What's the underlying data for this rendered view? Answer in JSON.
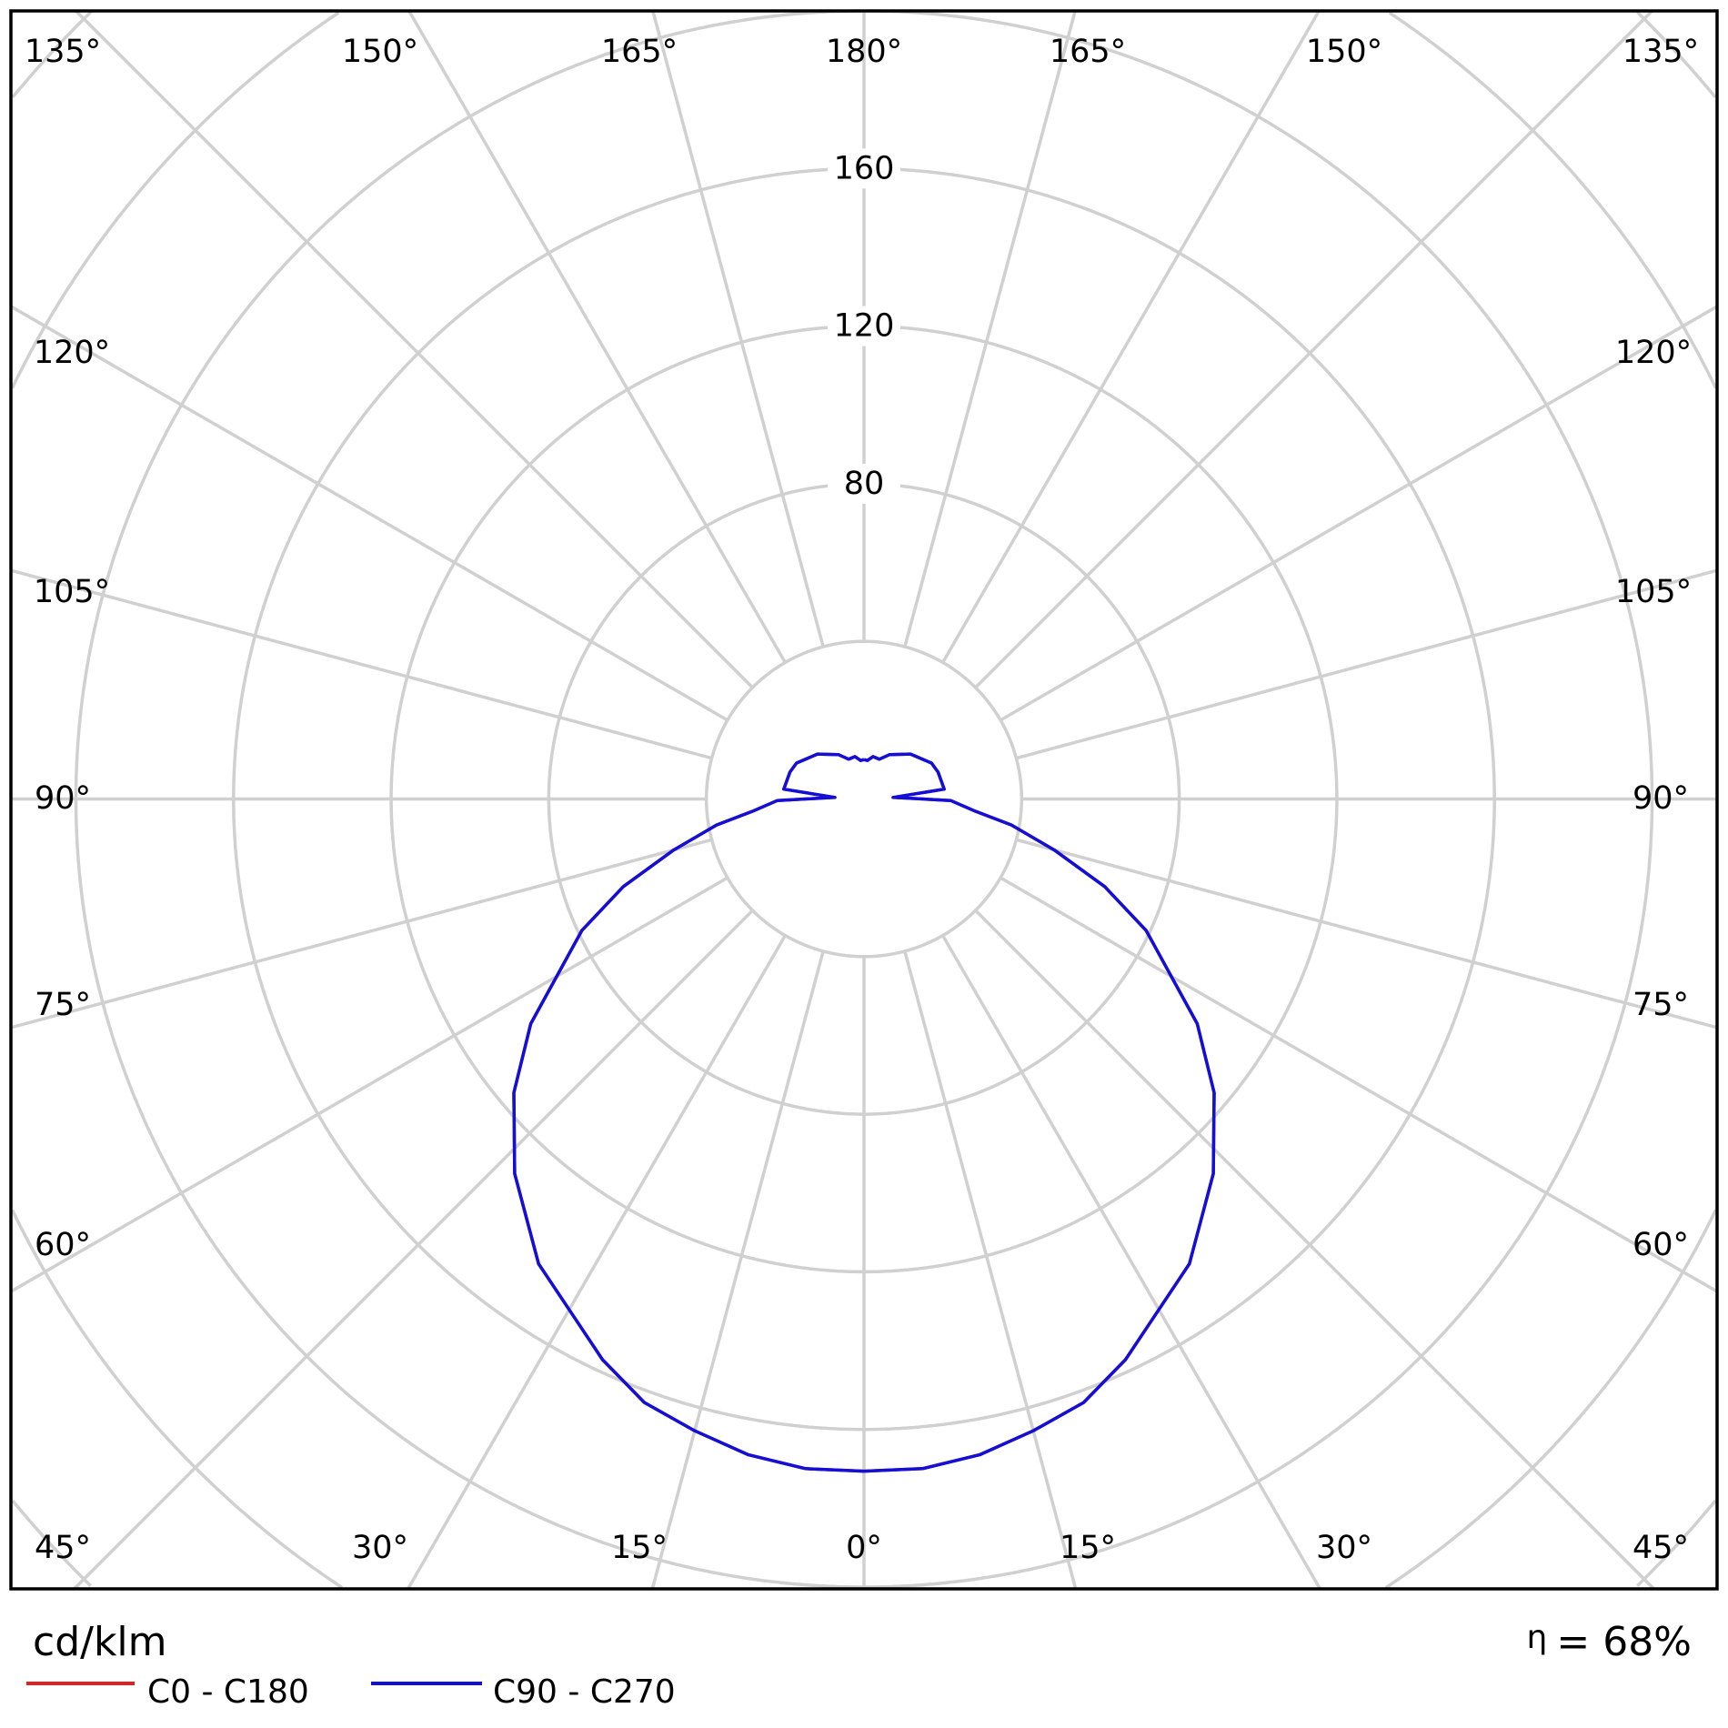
{
  "chart_data": {
    "type": "polar",
    "unit_label": "cd/klm",
    "efficiency_label": "η = 68%",
    "efficiency_symbol": "η",
    "efficiency_value": "= 68%",
    "radial_ticks": [
      40,
      80,
      120,
      160,
      200,
      240,
      280,
      320
    ],
    "radial_tick_labels": [
      "80",
      "120",
      "160"
    ],
    "radial_tick_label_values": [
      80,
      120,
      160
    ],
    "angle_step_deg": 15,
    "grid": true,
    "angle_labels": {
      "top": [
        "135°",
        "150°",
        "165°",
        "180°",
        "165°",
        "150°",
        "135°"
      ],
      "left": [
        "120°",
        "105°",
        "90°",
        "75°",
        "60°"
      ],
      "right": [
        "120°",
        "105°",
        "90°",
        "75°",
        "60°"
      ],
      "bottom": [
        "45°",
        "30°",
        "15°",
        "0°",
        "15°",
        "30°",
        "45°"
      ]
    },
    "legend_placement": "bottom-left",
    "series": [
      {
        "name": "C0 - C180",
        "color": "#e02020",
        "gamma": [
          0,
          5,
          10,
          15,
          20,
          25,
          35,
          43,
          50,
          56,
          65,
          70,
          75,
          80,
          84,
          89,
          93,
          97,
          110,
          118,
          134,
          150,
          159,
          168,
          175,
          180
        ],
        "values": [
          170.6,
          170.6,
          169,
          166,
          163,
          157,
          144,
          130,
          116,
          102,
          79,
          65,
          50,
          38,
          28,
          22,
          7.4,
          20.5,
          20,
          19.4,
          16.4,
          13,
          10.8,
          11,
          9.8,
          10
        ]
      },
      {
        "name": "C90 - C270",
        "color": "#1010d8",
        "gamma": [
          0,
          5,
          10,
          15,
          20,
          25,
          35,
          43,
          50,
          56,
          65,
          70,
          75,
          80,
          84,
          89,
          93,
          97,
          110,
          118,
          134,
          150,
          159,
          168,
          175,
          180
        ],
        "values": [
          170.6,
          170.6,
          169,
          166,
          163,
          157,
          144,
          130,
          116,
          102,
          79,
          65,
          50,
          38,
          28,
          22,
          7.4,
          20.5,
          20,
          19.4,
          16.4,
          13,
          10.8,
          11,
          9.8,
          10
        ]
      }
    ]
  }
}
